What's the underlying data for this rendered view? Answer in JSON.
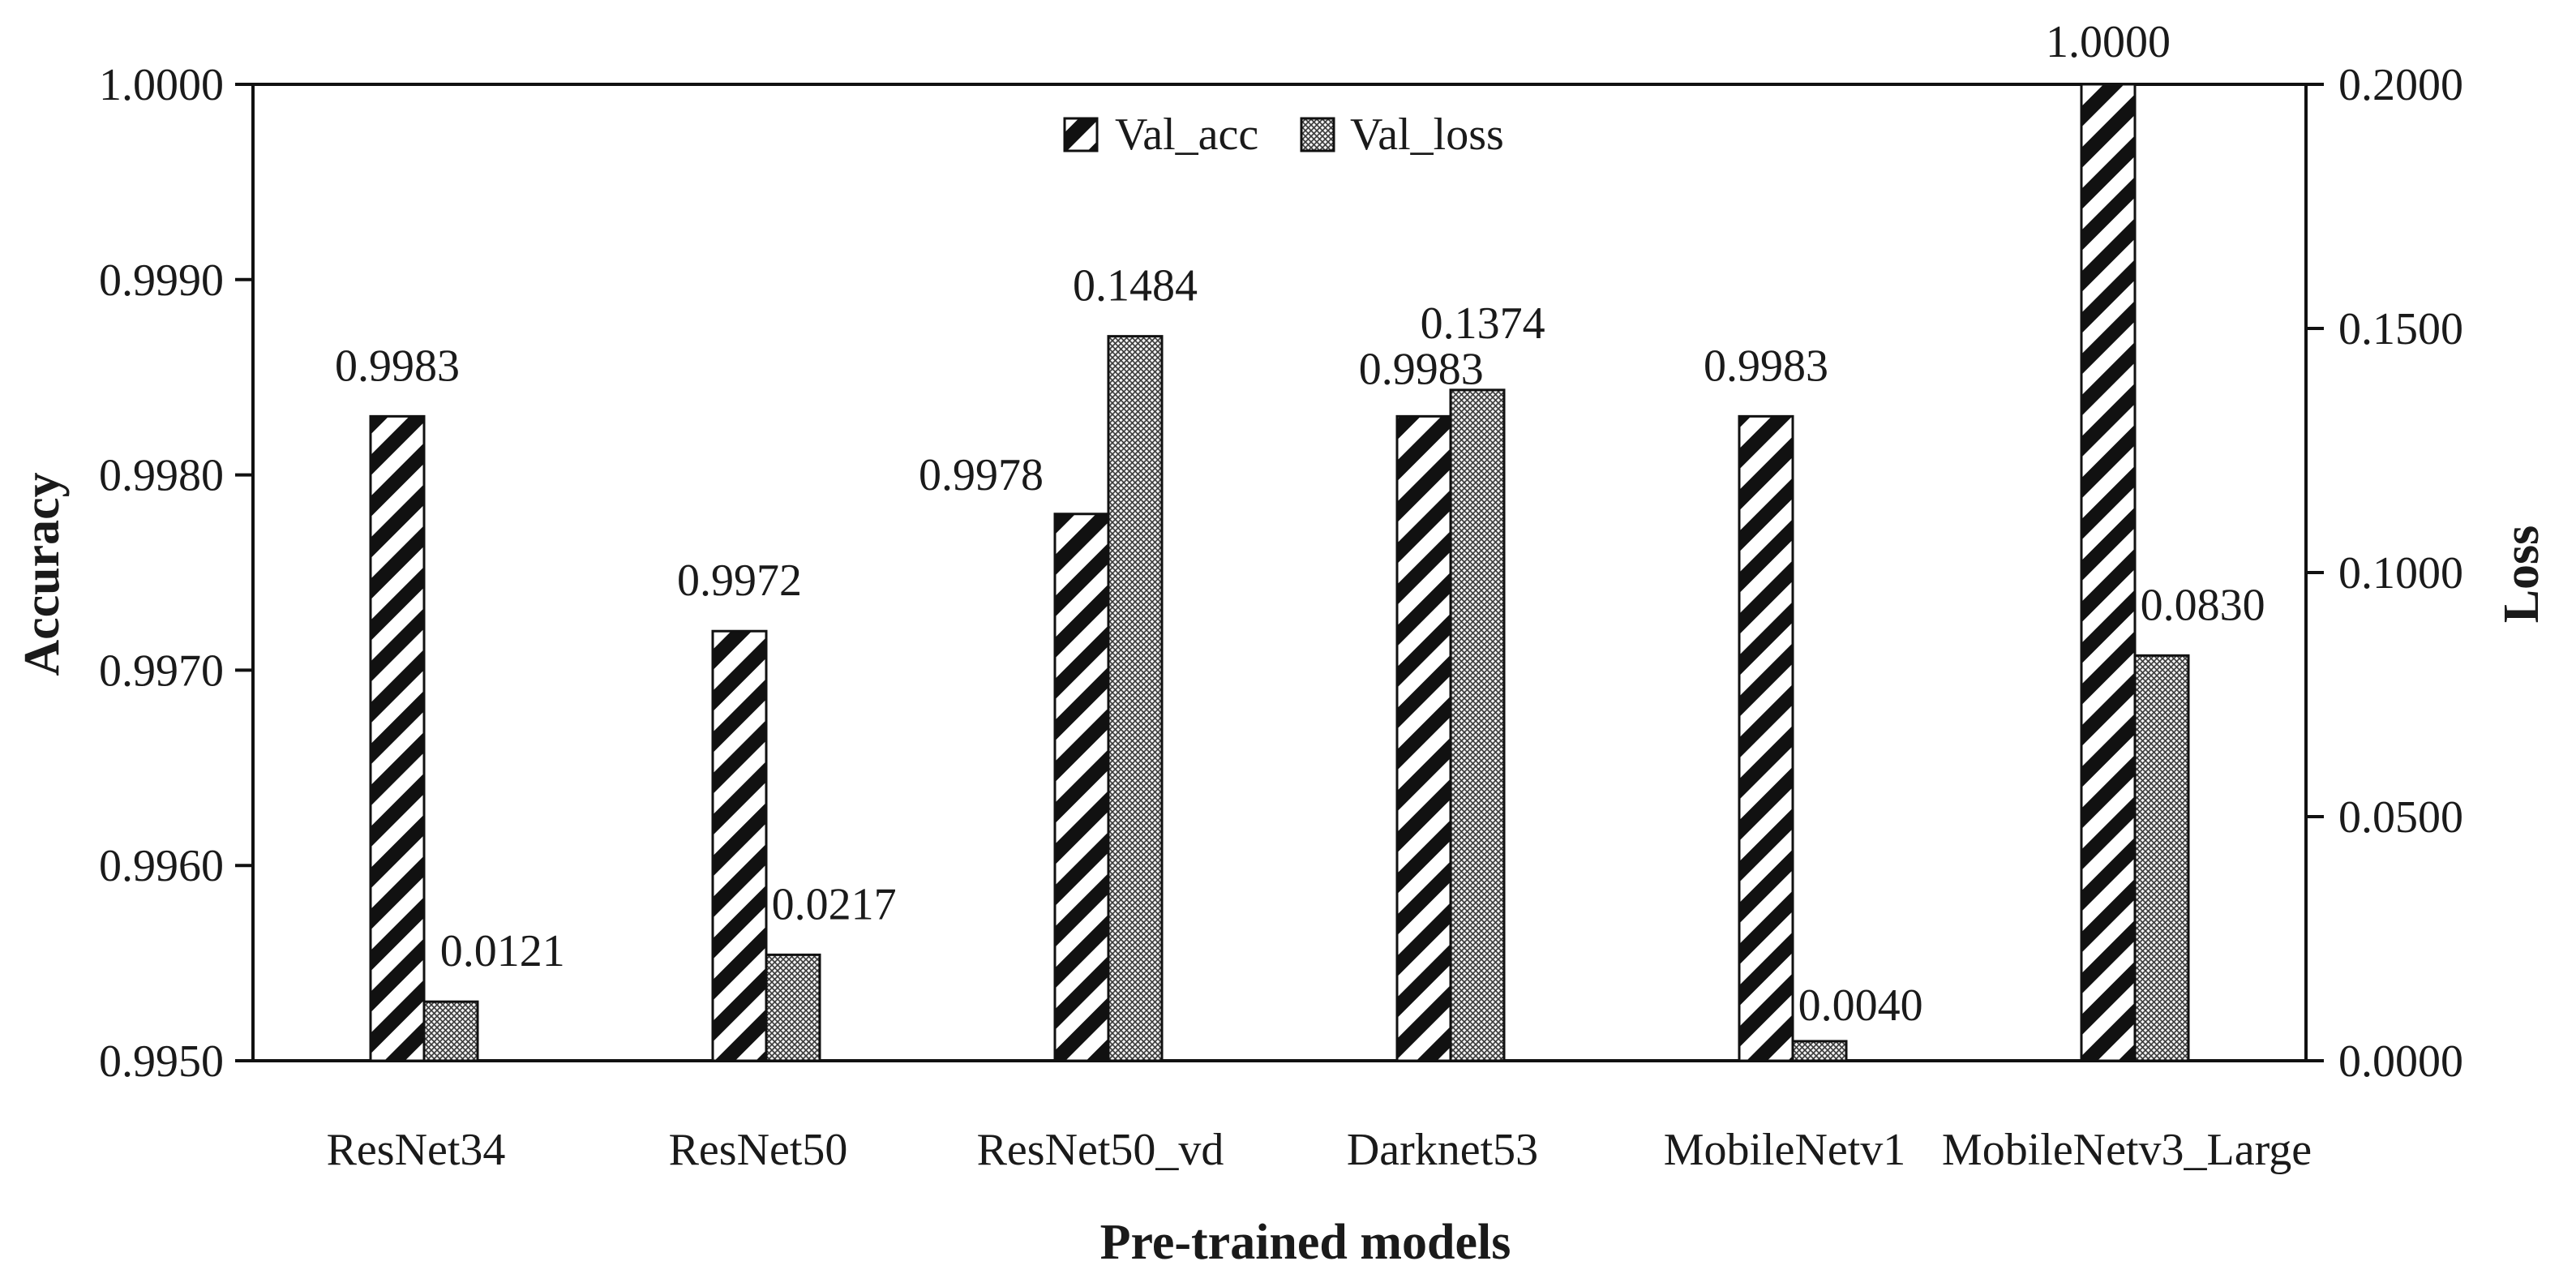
{
  "chart_data": {
    "type": "bar",
    "title": "",
    "xlabel": "Pre-trained models",
    "ylabel": "Accuracy",
    "y2label": "Loss",
    "categories": [
      "ResNet34",
      "ResNet50",
      "ResNet50_vd",
      "Darknet53",
      "MobileNetv1",
      "MobileNetv3_Large"
    ],
    "series": [
      {
        "name": "Val_acc",
        "axis": "left",
        "pattern": "diagonal-hatch",
        "values": [
          0.9983,
          0.9972,
          0.9978,
          0.9983,
          0.9983,
          1.0
        ],
        "labels": [
          "0.9983",
          "0.9972",
          "0.9978",
          "0.9983",
          "0.9983",
          "1.0000"
        ]
      },
      {
        "name": "Val_loss",
        "axis": "right",
        "pattern": "crosshatch",
        "values": [
          0.0121,
          0.0217,
          0.1484,
          0.1374,
          0.004,
          0.083
        ],
        "labels": [
          "0.0121",
          "0.0217",
          "0.1484",
          "0.1374",
          "0.0040",
          "0.0830"
        ]
      }
    ],
    "ylim": [
      0.995,
      1.0
    ],
    "yticks": [
      "0.9950",
      "0.9960",
      "0.9970",
      "0.9980",
      "0.9990",
      "1.0000"
    ],
    "y2lim": [
      0.0,
      0.2
    ],
    "y2ticks": [
      "0.0000",
      "0.0500",
      "0.1000",
      "0.1500",
      "0.2000"
    ],
    "legend": {
      "position": "top-center",
      "entries": [
        "Val_acc",
        "Val_loss"
      ]
    },
    "grid": false
  }
}
